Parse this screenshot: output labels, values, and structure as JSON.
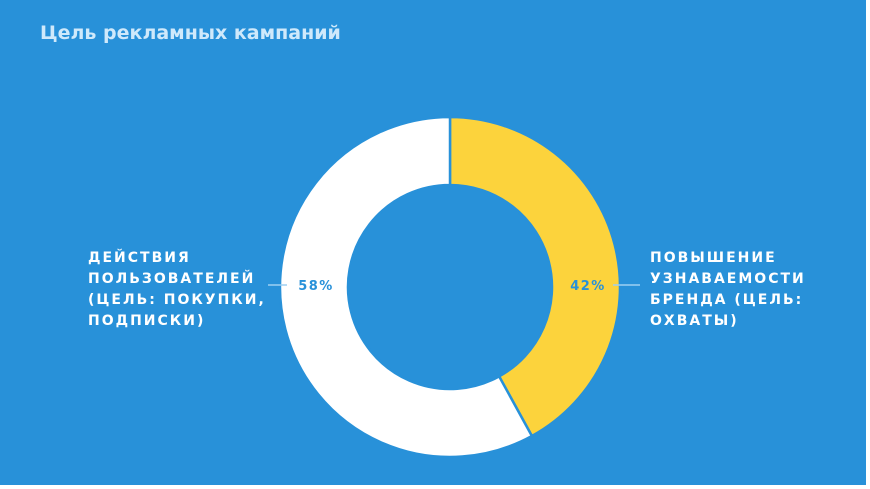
{
  "title": "Цель рекламных кампаний",
  "colors": {
    "background": "#2891d9",
    "slice_user_actions": "#ffffff",
    "slice_brand_awareness": "#fcd33c",
    "connector": "#9ecff2",
    "percent_text": "#2891d9"
  },
  "chart_data": {
    "type": "pie",
    "title": "Цель рекламных кампаний",
    "donut": true,
    "series": [
      {
        "name": "",
        "values": [
          42,
          58
        ],
        "categories": [
          "Повышение узнаваемости бренда (цель: охваты)",
          "Действия пользователей (цель: покупки, подписки)"
        ],
        "value_labels": [
          "42%",
          "58%"
        ]
      }
    ],
    "legend": "none",
    "label_placement": "outside with connector lines"
  },
  "labels": {
    "left_lines": [
      "ДЕЙСТВИЯ",
      "ПОЛЬЗОВАТЕЛЕЙ",
      "(ЦЕЛЬ: ПОКУПКИ,",
      "ПОДПИСКИ)"
    ],
    "right_lines": [
      "ПОВЫШЕНИЕ",
      "УЗНАВАЕМОСТИ",
      "БРЕНДА (ЦЕЛЬ:",
      "ОХВАТЫ)"
    ]
  }
}
